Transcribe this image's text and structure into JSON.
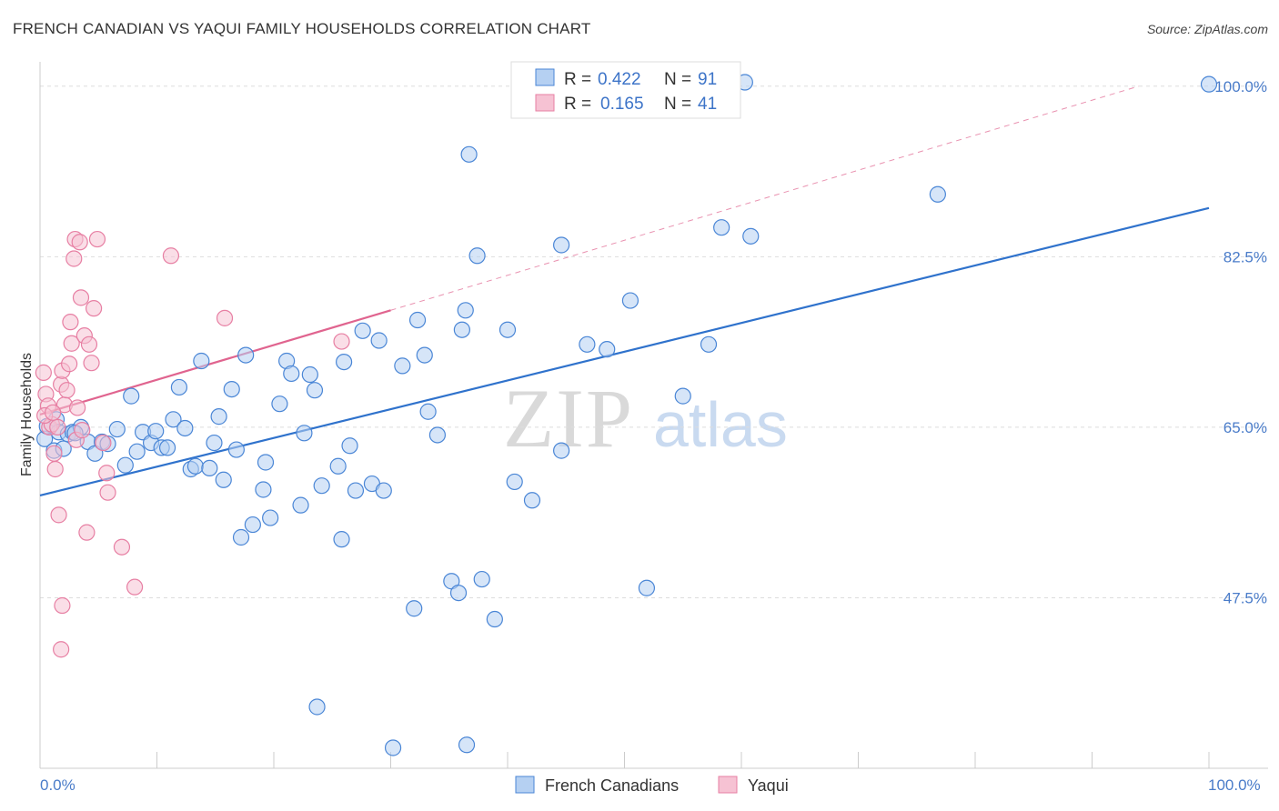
{
  "title": "FRENCH CANADIAN VS YAQUI FAMILY HOUSEHOLDS CORRELATION CHART",
  "source": "Source: ZipAtlas.com",
  "watermark": {
    "zip": "ZIP",
    "atlas": "atlas"
  },
  "colors": {
    "blue": "#4a86d6",
    "blue_fill": "#b5d0f2",
    "blue_line": "#2f72cc",
    "pink": "#e77fa3",
    "pink_fill": "#f6c2d3",
    "pink_line": "#e0648f",
    "grid": "#dddddd",
    "axis_label": "#4a7cc9"
  },
  "legend": {
    "rows": [
      {
        "r_label": "R =",
        "r_value": "0.422",
        "n_label": "N =",
        "n_value": "91",
        "series": "French Canadians"
      },
      {
        "r_label": "R =",
        "r_value": "0.165",
        "n_label": "N =",
        "n_value": "41",
        "series": "Yaqui"
      }
    ]
  },
  "chart_data": {
    "type": "scatter",
    "title": "FRENCH CANADIAN VS YAQUI FAMILY HOUSEHOLDS CORRELATION CHART",
    "xlabel": "",
    "ylabel": "Family Households",
    "xlim": [
      0,
      100
    ],
    "ylim": [
      30,
      102.5
    ],
    "x_tick_labels": [
      "0.0%",
      "100.0%"
    ],
    "y_ticks": [
      {
        "value": 47.5,
        "label": "47.5%"
      },
      {
        "value": 65.0,
        "label": "65.0%"
      },
      {
        "value": 82.5,
        "label": "82.5%"
      },
      {
        "value": 100.0,
        "label": "100.0%"
      }
    ],
    "series": [
      {
        "name": "French Canadians",
        "color": "#4a86d6",
        "trend": {
          "x": [
            0,
            100
          ],
          "y": [
            58.0,
            87.5
          ],
          "dashed_extension": false
        },
        "points": [
          [
            0.4,
            63.8
          ],
          [
            0.6,
            65.1
          ],
          [
            1.2,
            62.6
          ],
          [
            1.4,
            65.8
          ],
          [
            1.6,
            64.5
          ],
          [
            2.0,
            62.8
          ],
          [
            2.4,
            64.3
          ],
          [
            2.8,
            64.5
          ],
          [
            3.5,
            65.0
          ],
          [
            4.1,
            63.5
          ],
          [
            4.7,
            62.3
          ],
          [
            5.3,
            63.5
          ],
          [
            5.8,
            63.3
          ],
          [
            6.6,
            64.8
          ],
          [
            7.3,
            61.1
          ],
          [
            7.8,
            68.2
          ],
          [
            8.3,
            62.5
          ],
          [
            8.8,
            64.5
          ],
          [
            9.5,
            63.4
          ],
          [
            9.9,
            64.6
          ],
          [
            10.4,
            62.9
          ],
          [
            10.9,
            62.9
          ],
          [
            11.4,
            65.8
          ],
          [
            11.9,
            69.1
          ],
          [
            12.4,
            64.9
          ],
          [
            12.9,
            60.7
          ],
          [
            13.3,
            61.0
          ],
          [
            13.8,
            71.8
          ],
          [
            14.5,
            60.8
          ],
          [
            14.9,
            63.4
          ],
          [
            15.3,
            66.1
          ],
          [
            15.7,
            59.6
          ],
          [
            16.4,
            68.9
          ],
          [
            16.8,
            62.7
          ],
          [
            17.2,
            53.7
          ],
          [
            17.6,
            72.4
          ],
          [
            18.2,
            55.0
          ],
          [
            19.1,
            58.6
          ],
          [
            19.3,
            61.4
          ],
          [
            19.7,
            55.7
          ],
          [
            20.5,
            67.4
          ],
          [
            21.1,
            71.8
          ],
          [
            21.5,
            70.5
          ],
          [
            22.3,
            57.0
          ],
          [
            22.6,
            64.4
          ],
          [
            23.1,
            70.4
          ],
          [
            23.5,
            68.8
          ],
          [
            24.1,
            59.0
          ],
          [
            25.5,
            61.0
          ],
          [
            25.8,
            53.5
          ],
          [
            26.0,
            71.7
          ],
          [
            26.5,
            63.1
          ],
          [
            27.0,
            58.5
          ],
          [
            27.6,
            74.9
          ],
          [
            28.4,
            59.2
          ],
          [
            29.0,
            73.9
          ],
          [
            29.4,
            58.5
          ],
          [
            31.0,
            71.3
          ],
          [
            32.0,
            46.4
          ],
          [
            32.3,
            76.0
          ],
          [
            32.9,
            72.4
          ],
          [
            33.2,
            66.6
          ],
          [
            34.0,
            64.2
          ],
          [
            35.2,
            49.2
          ],
          [
            35.8,
            48.0
          ],
          [
            36.1,
            75.0
          ],
          [
            36.4,
            77.0
          ],
          [
            36.7,
            93.0
          ],
          [
            37.4,
            82.6
          ],
          [
            37.8,
            49.4
          ],
          [
            38.9,
            45.3
          ],
          [
            40.0,
            75.0
          ],
          [
            40.6,
            59.4
          ],
          [
            42.1,
            57.5
          ],
          [
            44.6,
            83.7
          ],
          [
            44.6,
            62.6
          ],
          [
            46.8,
            73.5
          ],
          [
            48.5,
            73.0
          ],
          [
            50.5,
            78.0
          ],
          [
            51.9,
            48.5
          ],
          [
            55.0,
            68.2
          ],
          [
            57.2,
            73.5
          ],
          [
            58.3,
            85.5
          ],
          [
            60.3,
            100.4
          ],
          [
            60.8,
            84.6
          ],
          [
            76.8,
            88.9
          ],
          [
            100.0,
            100.2
          ],
          [
            23.7,
            36.3
          ],
          [
            30.2,
            32.1
          ],
          [
            36.5,
            32.4
          ],
          [
            3.0,
            64.4
          ]
        ]
      },
      {
        "name": "Yaqui",
        "color": "#e77fa3",
        "trend": {
          "x": [
            0,
            30
          ],
          "y": [
            66.3,
            77.0
          ],
          "dashed_extension": true,
          "dashed_to": [
            94,
            100
          ]
        },
        "points": [
          [
            0.3,
            70.6
          ],
          [
            0.5,
            68.4
          ],
          [
            0.7,
            67.2
          ],
          [
            0.8,
            65.0
          ],
          [
            1.0,
            65.3
          ],
          [
            1.2,
            62.3
          ],
          [
            1.3,
            60.7
          ],
          [
            1.5,
            65.0
          ],
          [
            1.6,
            56.0
          ],
          [
            1.8,
            69.4
          ],
          [
            1.9,
            70.8
          ],
          [
            2.1,
            67.3
          ],
          [
            2.3,
            68.8
          ],
          [
            2.5,
            71.5
          ],
          [
            2.6,
            75.8
          ],
          [
            2.7,
            73.6
          ],
          [
            2.9,
            82.3
          ],
          [
            3.0,
            84.3
          ],
          [
            3.1,
            63.7
          ],
          [
            3.2,
            67.0
          ],
          [
            3.4,
            84.0
          ],
          [
            3.5,
            78.3
          ],
          [
            3.6,
            64.7
          ],
          [
            3.8,
            74.4
          ],
          [
            4.0,
            54.2
          ],
          [
            4.2,
            73.5
          ],
          [
            4.4,
            71.6
          ],
          [
            4.6,
            77.2
          ],
          [
            4.9,
            84.3
          ],
          [
            5.4,
            63.4
          ],
          [
            5.7,
            60.3
          ],
          [
            5.8,
            58.3
          ],
          [
            7.0,
            52.7
          ],
          [
            8.1,
            48.6
          ],
          [
            11.2,
            82.6
          ],
          [
            15.8,
            76.2
          ],
          [
            25.8,
            73.8
          ],
          [
            1.9,
            46.7
          ],
          [
            1.8,
            42.2
          ],
          [
            0.4,
            66.2
          ],
          [
            1.1,
            66.5
          ]
        ]
      }
    ],
    "legend_position": "top-center",
    "grid": true
  }
}
